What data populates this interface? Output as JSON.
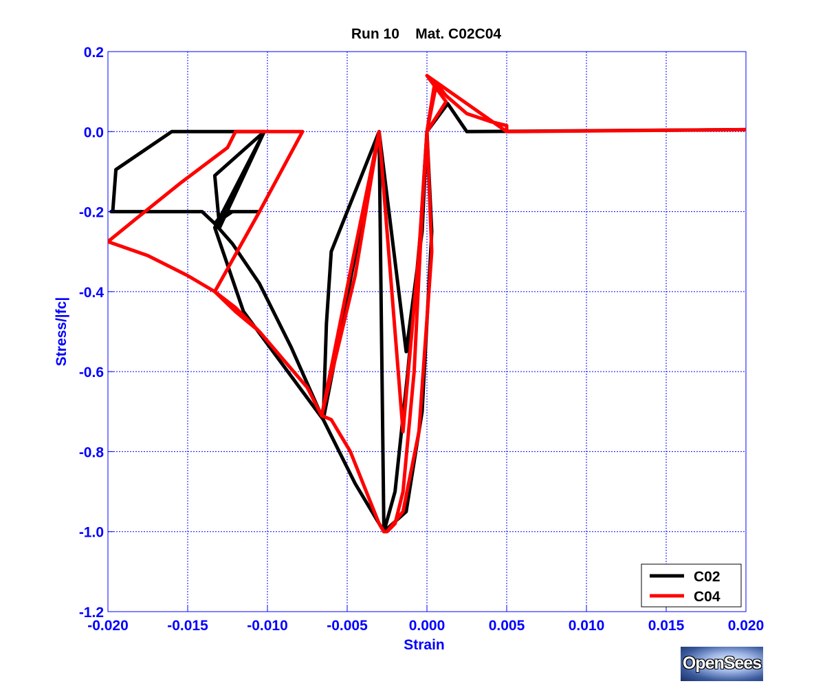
{
  "chart_data": {
    "type": "line",
    "title": "Run 10    Mat. C02C04",
    "xlabel": "Strain",
    "ylabel": "Stress/|fc|",
    "xlim": [
      -0.02,
      0.02
    ],
    "ylim": [
      -1.2,
      0.2
    ],
    "x_ticks": [
      -0.02,
      -0.015,
      -0.01,
      -0.005,
      0.0,
      0.005,
      0.01,
      0.015,
      0.02
    ],
    "x_tick_labels": [
      "-0.020",
      "-0.015",
      "-0.010",
      "-0.005",
      "0.000",
      "0.005",
      "0.010",
      "0.015",
      "0.020"
    ],
    "y_ticks": [
      0.2,
      0.0,
      -0.2,
      -0.4,
      -0.6,
      -0.8,
      -1.0,
      -1.2
    ],
    "y_tick_labels": [
      "0.2",
      "0.0",
      "-0.2",
      "-0.4",
      "-0.6",
      "-0.8",
      "-1.0",
      "-1.2"
    ],
    "grid": true,
    "legend_position": "bottom-right",
    "series": [
      {
        "name": "C02",
        "color": "#000000",
        "x": [
          0.0,
          0.0013,
          0.0025,
          0.02,
          0.0025,
          0.0013,
          0.0,
          -0.0004,
          -0.0012,
          -0.002,
          -0.0027,
          -0.0045,
          -0.0065,
          -0.0085,
          -0.0105,
          -0.0122,
          -0.0133,
          -0.0127,
          -0.0105,
          -0.0122,
          -0.0133,
          -0.0141,
          -0.0198,
          -0.0197,
          -0.0195,
          -0.016,
          -0.0123,
          -0.0102,
          -0.0133,
          -0.013,
          -0.0102,
          -0.0133,
          -0.0115,
          -0.0065,
          -0.0063,
          -0.006,
          -0.0042,
          -0.003,
          -0.0047,
          -0.0065,
          -0.0047,
          -0.003,
          -0.0013,
          -0.0003,
          0.0,
          0.0003,
          -0.0003,
          -0.0013,
          -0.0027,
          -0.003
        ],
        "y": [
          0.0,
          0.07,
          0.0,
          0.005,
          0.0,
          0.07,
          0.0,
          -0.25,
          -0.6,
          -0.9,
          -1.0,
          -0.88,
          -0.72,
          -0.54,
          -0.38,
          -0.28,
          -0.23,
          -0.2,
          -0.2,
          -0.2,
          -0.23,
          -0.2,
          -0.2,
          -0.2,
          -0.095,
          0.0,
          0.0,
          0.0,
          -0.11,
          -0.24,
          0.0,
          -0.24,
          -0.45,
          -0.72,
          -0.48,
          -0.3,
          -0.12,
          0.0,
          -0.35,
          -0.72,
          -0.35,
          0.0,
          -0.55,
          -0.25,
          0.0,
          -0.25,
          -0.7,
          -0.95,
          -1.0,
          0.0
        ]
      },
      {
        "name": "C04",
        "color": "#ff0000",
        "x": [
          0.0,
          0.0005,
          0.0012,
          0.0025,
          0.004,
          0.005,
          0.005,
          0.02,
          0.005,
          0.0,
          0.0012,
          0.0,
          0.0005,
          0.0,
          -0.0003,
          -0.0008,
          -0.0015,
          -0.002,
          -0.0025,
          -0.0027,
          -0.003,
          -0.0038,
          -0.0048,
          -0.006,
          -0.0066,
          -0.0075,
          -0.009,
          -0.0105,
          -0.012,
          -0.0133,
          -0.015,
          -0.0175,
          -0.02,
          -0.0183,
          -0.0155,
          -0.0125,
          -0.012,
          -0.0078,
          -0.0105,
          -0.0133,
          -0.0105,
          -0.0078,
          -0.0105,
          -0.0133,
          -0.012,
          -0.0105,
          -0.009,
          -0.0075,
          -0.0066,
          -0.0048,
          -0.003,
          -0.0045,
          -0.0066,
          -0.0048,
          -0.003,
          -0.0015,
          -0.0005,
          0.0,
          0.0003,
          -0.0005,
          -0.0015,
          -0.0025,
          -0.0027
        ],
        "y": [
          0.0,
          0.125,
          0.09,
          0.045,
          0.025,
          0.015,
          0.0,
          0.005,
          0.0,
          0.14,
          0.075,
          0.0,
          0.1,
          0.0,
          -0.2,
          -0.6,
          -0.9,
          -0.98,
          -1.0,
          -1.0,
          -0.98,
          -0.9,
          -0.8,
          -0.72,
          -0.71,
          -0.64,
          -0.57,
          -0.5,
          -0.45,
          -0.4,
          -0.36,
          -0.31,
          -0.275,
          -0.22,
          -0.13,
          -0.04,
          0.0,
          0.0,
          -0.2,
          -0.4,
          -0.2,
          0.0,
          -0.2,
          -0.4,
          -0.44,
          -0.5,
          -0.57,
          -0.64,
          -0.71,
          -0.35,
          0.0,
          -0.36,
          -0.71,
          -0.35,
          0.0,
          -0.75,
          -0.3,
          0.0,
          -0.3,
          -0.75,
          -0.95,
          -1.0,
          -1.0
        ]
      }
    ]
  },
  "logo_text": "OpenSees"
}
